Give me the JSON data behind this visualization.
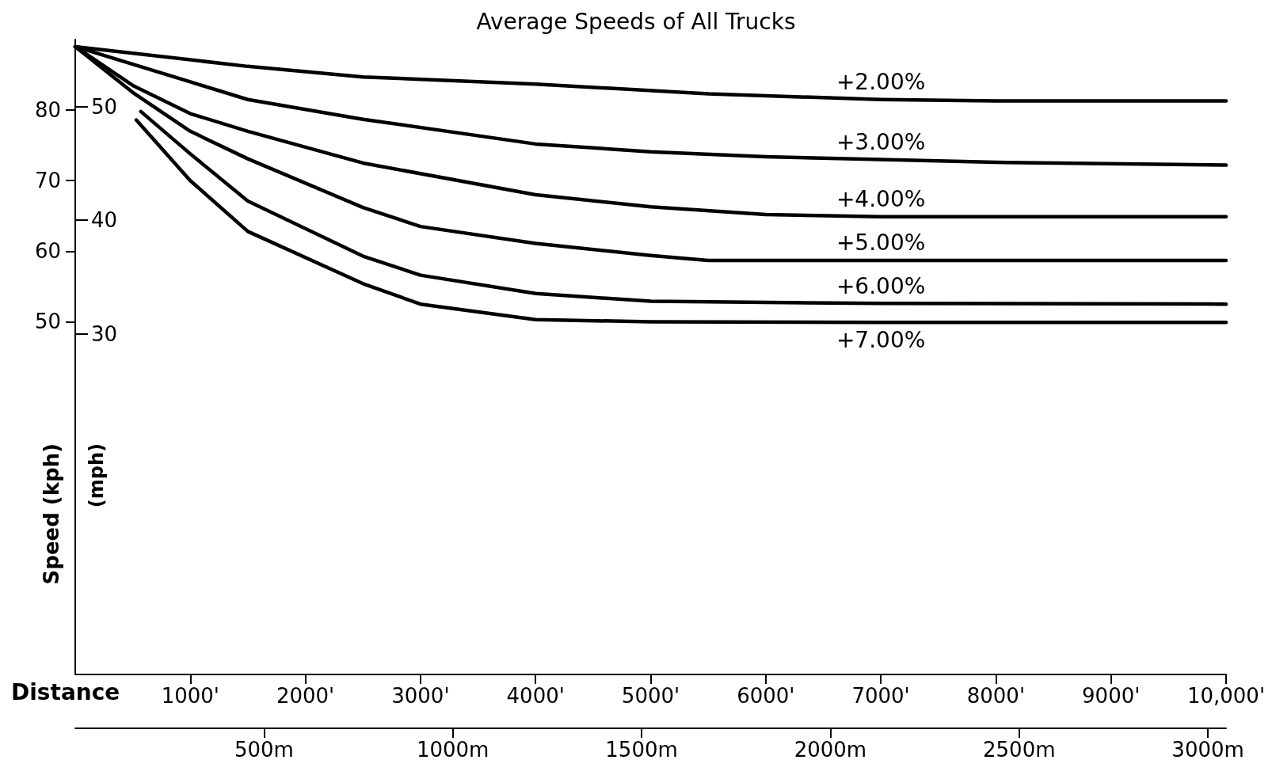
{
  "chart_data": {
    "type": "line",
    "title": "Average Speeds of All Trucks",
    "xlabel": "Distance",
    "ylabel": "Speed (kph)",
    "y2label": "(mph)",
    "xlim": [
      0,
      10000
    ],
    "xticks": [
      {
        "value": 1000,
        "label": "1000'"
      },
      {
        "value": 2000,
        "label": "2000'"
      },
      {
        "value": 3000,
        "label": "3000'"
      },
      {
        "value": 4000,
        "label": "4000'"
      },
      {
        "value": 5000,
        "label": "5000'"
      },
      {
        "value": 6000,
        "label": "6000'"
      },
      {
        "value": 7000,
        "label": "7000'"
      },
      {
        "value": 8000,
        "label": "8000'"
      },
      {
        "value": 9000,
        "label": "9000'"
      },
      {
        "value": 10000,
        "label": "10,000'"
      }
    ],
    "x2lim": [
      0,
      3048
    ],
    "x2ticks": [
      {
        "value": 500,
        "label": "500m"
      },
      {
        "value": 1000,
        "label": "1000m"
      },
      {
        "value": 1500,
        "label": "1500m"
      },
      {
        "value": 2000,
        "label": "2000m"
      },
      {
        "value": 2500,
        "label": "2500m"
      },
      {
        "value": 3000,
        "label": "3000m"
      }
    ],
    "ylim": [
      0,
      90
    ],
    "yticks": [
      50,
      60,
      70,
      80
    ],
    "y2lim": [
      0,
      55.9
    ],
    "y2ticks": [
      30,
      40,
      50
    ],
    "grid": false,
    "legend": false,
    "marker": "none",
    "line_style": "solid",
    "series": [
      {
        "name": "+2.00%",
        "color": "#000000",
        "x": [
          0,
          1500,
          2500,
          4000,
          5500,
          7000,
          8000,
          10000
        ],
        "values": [
          89,
          86.2,
          84.7,
          83.7,
          82.3,
          81.5,
          81.3,
          81.3
        ]
      },
      {
        "name": "+3.00%",
        "color": "#000000",
        "x": [
          0,
          1000,
          1500,
          2500,
          4000,
          5000,
          6000,
          7000,
          8000,
          10000
        ],
        "values": [
          89,
          84,
          81.5,
          78.7,
          75.2,
          74.1,
          73.4,
          73,
          72.6,
          72.2
        ]
      },
      {
        "name": "+4.00%",
        "color": "#000000",
        "x": [
          0,
          500,
          1000,
          1500,
          2500,
          4000,
          5000,
          6000,
          7000,
          10000
        ],
        "values": [
          89,
          83.5,
          79.5,
          77,
          72.5,
          68,
          66.3,
          65.2,
          64.9,
          64.9
        ]
      },
      {
        "name": "+5.00%",
        "color": "#000000",
        "x": [
          0,
          500,
          1000,
          1500,
          2500,
          3000,
          4000,
          5000,
          5500,
          7000,
          10000
        ],
        "values": [
          89,
          82.5,
          77,
          73.1,
          66.2,
          63.5,
          61.1,
          59.4,
          58.7,
          58.7,
          58.7
        ]
      },
      {
        "name": "+6.00%",
        "color": "#000000",
        "x": [
          570,
          1000,
          1500,
          2500,
          3000,
          4000,
          5000,
          7000,
          10000
        ],
        "values": [
          79.8,
          73.8,
          67.1,
          59.3,
          56.6,
          54,
          52.9,
          52.6,
          52.5
        ]
      },
      {
        "name": "+7.00%",
        "color": "#000000",
        "x": [
          530,
          1000,
          1500,
          2500,
          3000,
          4000,
          5000,
          7000,
          10000
        ],
        "values": [
          78.6,
          70,
          62.8,
          55.4,
          52.5,
          50.3,
          50,
          49.9,
          49.9
        ]
      }
    ]
  }
}
